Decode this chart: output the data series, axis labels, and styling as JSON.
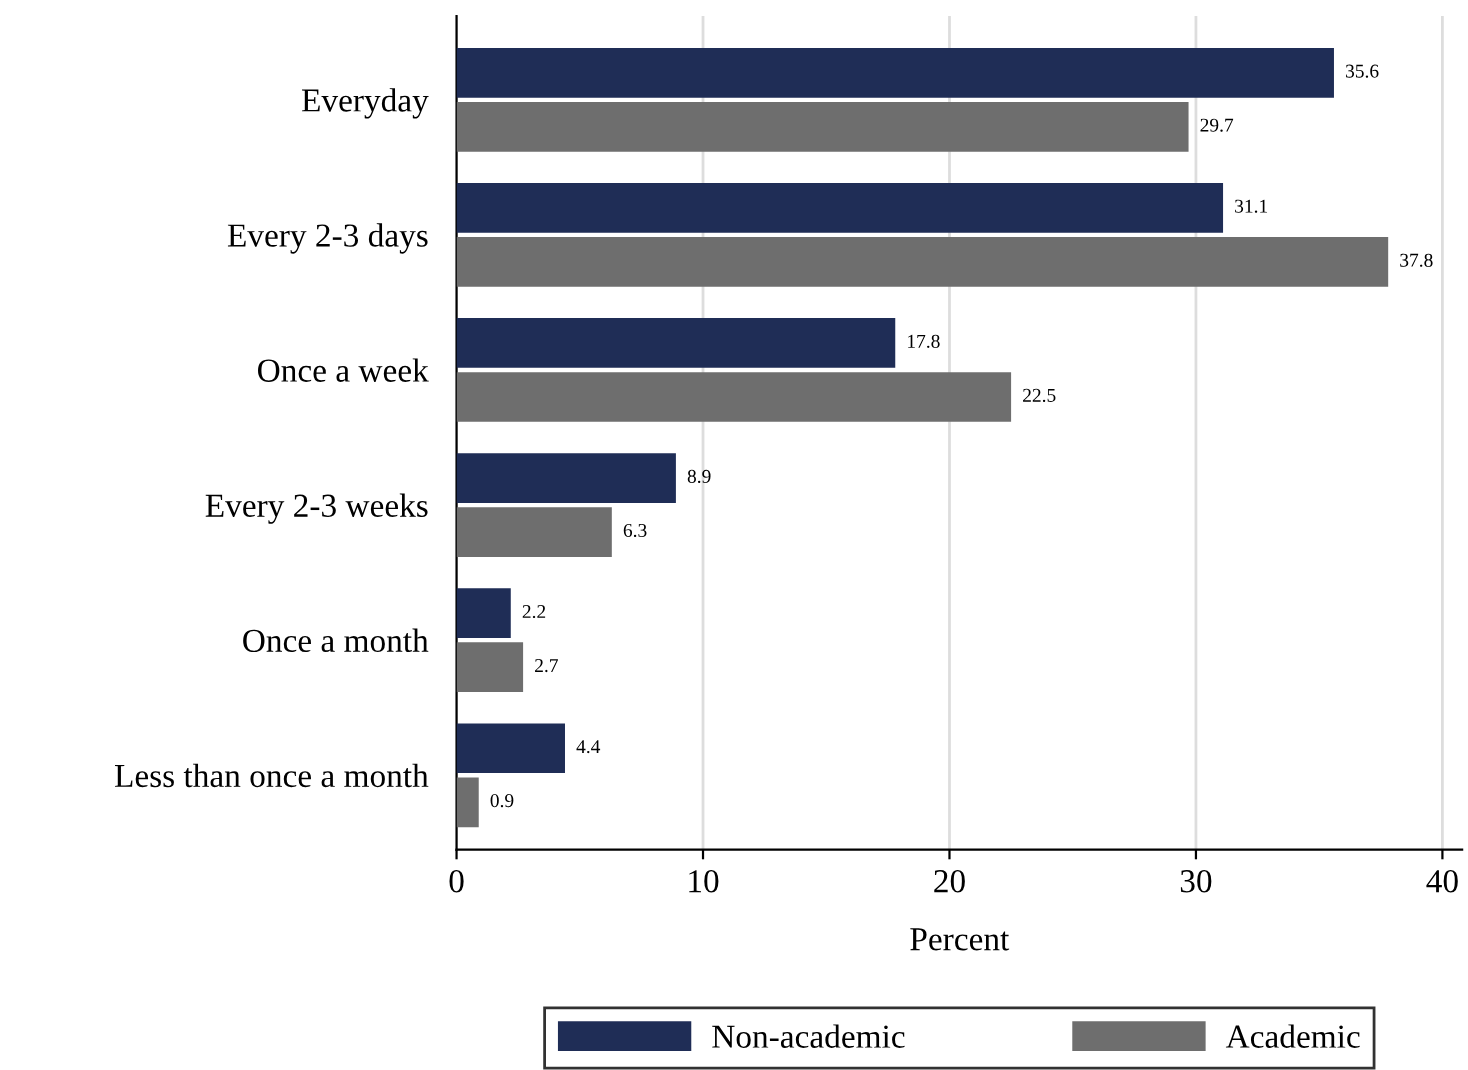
{
  "chart_data": {
    "type": "bar",
    "orientation": "horizontal",
    "xlabel": "Percent",
    "categories": [
      "Everyday",
      "Every 2-3 days",
      "Once a week",
      "Every 2-3 weeks",
      "Once a month",
      "Less than once a month"
    ],
    "series": [
      {
        "name": "Non-academic",
        "color": "#1f2d56",
        "values": [
          35.6,
          31.1,
          17.8,
          8.9,
          2.2,
          4.4
        ]
      },
      {
        "name": "Academic",
        "color": "#6e6e6e",
        "values": [
          29.7,
          37.8,
          22.5,
          6.3,
          2.7,
          0.9
        ]
      }
    ],
    "xlim": [
      0,
      40.8
    ],
    "xticks": [
      0,
      10,
      20,
      30,
      40
    ],
    "grid": "x",
    "legend": "bottom",
    "data_labels": true
  }
}
